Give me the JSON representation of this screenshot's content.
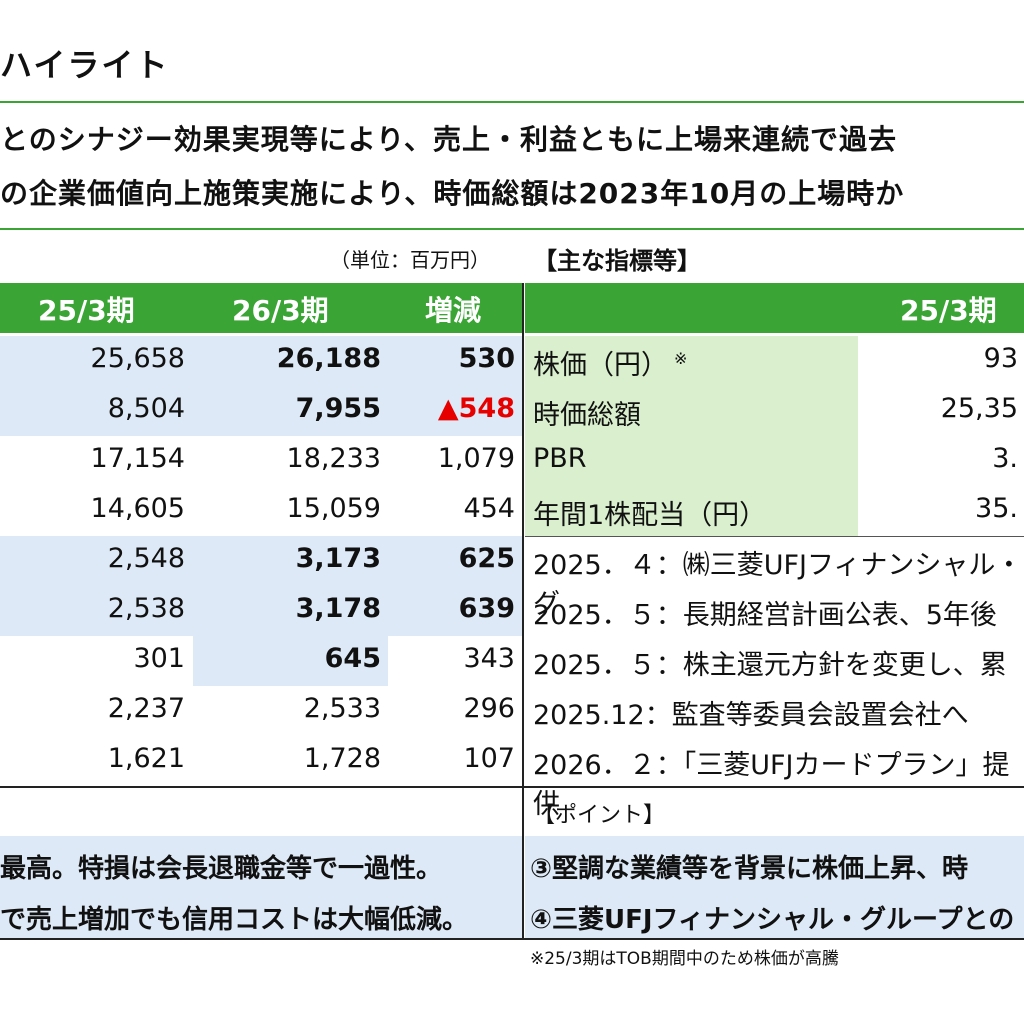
{
  "title": "ハイライト",
  "summary": [
    "とのシナジー効果実現等により、売上・利益ともに上場来連続で過去",
    "の企業価値向上施策実施により、時価総額は2023年10月の上場時か"
  ],
  "unit_label": "（単位：百万円）",
  "indicators_title": "【主な指標等】",
  "left_table": {
    "headers": [
      "25/3期",
      "26/3期",
      "増減"
    ],
    "rows": [
      {
        "a": "25,658",
        "b": "26,188",
        "d": "530"
      },
      {
        "a": "8,504",
        "b": "7,955",
        "d": "▲548"
      },
      {
        "a": "17,154",
        "b": "18,233",
        "d": "1,079"
      },
      {
        "a": "14,605",
        "b": "15,059",
        "d": "454"
      },
      {
        "a": "2,548",
        "b": "3,173",
        "d": "625"
      },
      {
        "a": "2,538",
        "b": "3,178",
        "d": "639"
      },
      {
        "a": "301",
        "b": "645",
        "d": "343"
      },
      {
        "a": "2,237",
        "b": "2,533",
        "d": "296"
      },
      {
        "a": "1,621",
        "b": "1,728",
        "d": "107"
      }
    ]
  },
  "right_table": {
    "header": "25/3期",
    "metrics": [
      {
        "label": "株価（円）",
        "mark": "※",
        "value": "93"
      },
      {
        "label": "時価総額",
        "value": "25,35"
      },
      {
        "label": "PBR",
        "value": "3."
      },
      {
        "label": "年間1株配当（円）",
        "value": "35."
      }
    ],
    "events": [
      "2025．４：㈱三菱UFJフィナンシャル・グ",
      "2025．５：長期経営計画公表、5年後",
      "2025．５：株主還元方針を変更し、累",
      "2025.12：監査等委員会設置会社へ",
      "2026．２：「三菱UFJカードプラン」提供"
    ]
  },
  "points_label": "【ポイント】",
  "left_points": [
    "最高。特損は会長退職金等で一過性。",
    "で売上増加でも信用コストは大幅低減。"
  ],
  "right_points": [
    "③堅調な業績等を背景に株価上昇、時",
    "④三菱UFJフィナンシャル・グループとの"
  ],
  "footnote": "※25/3期はTOB期間中のため株価が高騰"
}
